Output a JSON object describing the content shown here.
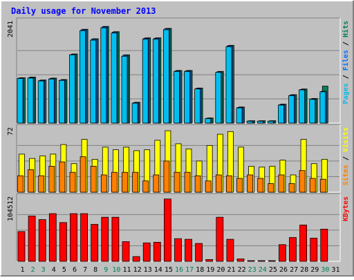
{
  "title": "Daily usage for November 2013",
  "colors": {
    "pages": "#00bfef",
    "files": "#0070ff",
    "hits": "#00805c",
    "visits": "#ffff00",
    "sites": "#ff8000",
    "kbytes": "#ff0000",
    "weekend_label": "#00805c",
    "weekday_label": "#000000",
    "title": "#0000ff"
  },
  "chart_data": [
    {
      "type": "bar",
      "panel": "hits-files-pages",
      "ymax_label": "2041",
      "ymax": 2041,
      "categories": [
        "1",
        "2",
        "3",
        "4",
        "5",
        "6",
        "7",
        "8",
        "9",
        "10",
        "11",
        "12",
        "13",
        "14",
        "15",
        "16",
        "17",
        "18",
        "19",
        "20",
        "21",
        "22",
        "23",
        "24",
        "25",
        "26",
        "27",
        "28",
        "29",
        "30",
        "31"
      ],
      "weekend_days": [
        2,
        3,
        9,
        10,
        16,
        17,
        23,
        24,
        30
      ],
      "legend": [
        {
          "label": "Pages",
          "color": "#00bfef"
        },
        {
          "label": "Files",
          "color": "#0070ff"
        },
        {
          "label": "Hits",
          "color": "#00805c"
        }
      ],
      "series": [
        {
          "name": "Hits",
          "values": [
            958,
            970,
            910,
            950,
            920,
            1460,
            1980,
            1780,
            2041,
            1930,
            1440,
            440,
            1800,
            1800,
            2000,
            1110,
            1110,
            740,
            110,
            1090,
            1640,
            340,
            50,
            50,
            50,
            400,
            600,
            720,
            520,
            780,
            0
          ]
        },
        {
          "name": "Files",
          "values": [
            950,
            960,
            900,
            940,
            910,
            1450,
            1970,
            1770,
            2030,
            1920,
            1430,
            430,
            1790,
            1790,
            1990,
            1100,
            1100,
            730,
            100,
            1080,
            1630,
            330,
            45,
            45,
            45,
            390,
            590,
            710,
            510,
            670,
            0
          ]
        },
        {
          "name": "Pages",
          "values": [
            940,
            950,
            890,
            930,
            900,
            1440,
            1950,
            1750,
            2010,
            1900,
            1410,
            420,
            1770,
            1770,
            1970,
            1090,
            1090,
            720,
            95,
            1070,
            1610,
            320,
            40,
            40,
            40,
            380,
            580,
            700,
            500,
            660,
            0
          ]
        }
      ]
    },
    {
      "type": "bar",
      "panel": "visits-sites",
      "ymax_label": "72",
      "ymax": 72,
      "categories": [
        "1",
        "2",
        "3",
        "4",
        "5",
        "6",
        "7",
        "8",
        "9",
        "10",
        "11",
        "12",
        "13",
        "14",
        "15",
        "16",
        "17",
        "18",
        "19",
        "20",
        "21",
        "22",
        "23",
        "24",
        "25",
        "26",
        "27",
        "28",
        "29",
        "30",
        "31"
      ],
      "legend": [
        {
          "label": "Sites",
          "color": "#ff8000"
        },
        {
          "label": "Visits",
          "color": "#ffff00"
        }
      ],
      "series": [
        {
          "name": "Visits",
          "values": [
            44,
            39,
            42,
            44,
            55,
            33,
            61,
            38,
            52,
            49,
            52,
            48,
            49,
            60,
            71,
            56,
            50,
            36,
            54,
            67,
            70,
            52,
            30,
            29,
            30,
            37,
            20,
            61,
            33,
            38,
            0
          ]
        },
        {
          "name": "Sites",
          "values": [
            19,
            26,
            19,
            30,
            35,
            23,
            41,
            30,
            20,
            23,
            23,
            23,
            13,
            20,
            36,
            23,
            23,
            19,
            13,
            20,
            19,
            16,
            20,
            16,
            10,
            20,
            10,
            25,
            16,
            15,
            0
          ]
        }
      ]
    },
    {
      "type": "bar",
      "panel": "kbytes",
      "ymax_label": "104512",
      "ymax": 104512,
      "categories": [
        "1",
        "2",
        "3",
        "4",
        "5",
        "6",
        "7",
        "8",
        "9",
        "10",
        "11",
        "12",
        "13",
        "14",
        "15",
        "16",
        "17",
        "18",
        "19",
        "20",
        "21",
        "22",
        "23",
        "24",
        "25",
        "26",
        "27",
        "28",
        "29",
        "30",
        "31"
      ],
      "legend": [
        {
          "label": "KBytes",
          "color": "#ff0000"
        }
      ],
      "series": [
        {
          "name": "KBytes",
          "values": [
            50000,
            76000,
            70000,
            80000,
            65000,
            80000,
            80000,
            62000,
            74000,
            74000,
            33000,
            8000,
            31000,
            32000,
            104512,
            38000,
            37000,
            30000,
            3000,
            74000,
            37000,
            4000,
            1000,
            1000,
            1000,
            28000,
            40000,
            61000,
            39000,
            54000,
            0
          ]
        }
      ]
    }
  ]
}
